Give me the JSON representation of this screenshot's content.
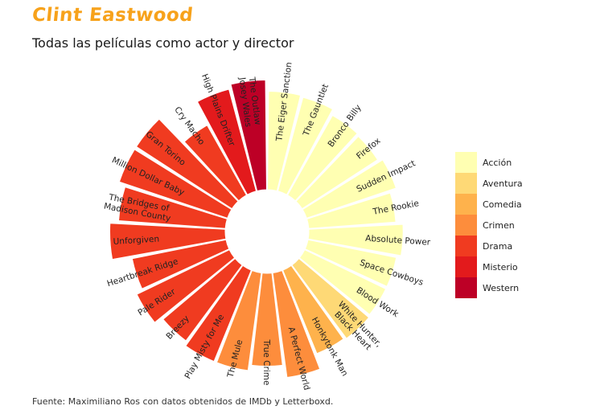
{
  "header": {
    "brand": "Clint Eastwood",
    "subtitle": "Todas las películas como actor y director"
  },
  "footer": {
    "source": "Fuente: Maximiliano Ros con datos obtenidos de IMDb y Letterboxd."
  },
  "genre_colors": {
    "Acción": "#ffffb2",
    "Aventura": "#fed976",
    "Comedia": "#feb24c",
    "Crimen": "#fd8d3c",
    "Drama": "#f03b20",
    "Misterio": "#e31a1c",
    "Western": "#bd0026"
  },
  "chart_data": {
    "type": "bar",
    "coordinate_system": "polar",
    "categories": [
      "The Eiger Sanction",
      "The Gauntlet",
      "Bronco Billy",
      "Firefox",
      "Sudden Impact",
      "The Rookie",
      "Absolute Power",
      "Space Cowboys",
      "Blood Work",
      "White Hunter, Black Heart",
      "Honkytonk Man",
      "A Perfect World",
      "True Crime",
      "The Mule",
      "Play Misty for Me",
      "Breezy",
      "Pale Rider",
      "Heartbreak Ridge",
      "Unforgiven",
      "The Bridges of Madison County",
      "Million Dollar Baby",
      "Gran Torino",
      "Cry Macho",
      "High Plains Drifter",
      "The Outlaw Josey Wales"
    ],
    "tick_labels": [
      [
        "The Eiger Sanction"
      ],
      [
        "The Gauntlet"
      ],
      [
        "Bronco Billy"
      ],
      [
        "Firefox"
      ],
      [
        "Sudden Impact"
      ],
      [
        "The Rookie"
      ],
      [
        "Absolute Power"
      ],
      [
        "Space Cowboys"
      ],
      [
        "Blood Work"
      ],
      [
        "White Hunter,",
        "Black Heart"
      ],
      [
        "Honkytonk Man"
      ],
      [
        "A Perfect World"
      ],
      [
        "True Crime"
      ],
      [
        "The Mule"
      ],
      [
        "Play Misty for Me"
      ],
      [
        "Breezy"
      ],
      [
        "Pale Rider"
      ],
      [
        "Heartbreak Ridge"
      ],
      [
        "Unforgiven"
      ],
      [
        "The Bridges of",
        "Madison County"
      ],
      [
        "Million Dollar Baby"
      ],
      [
        "Gran Torino"
      ],
      [
        "Cry Macho"
      ],
      [
        "High Plains Drifter"
      ],
      [
        "The Outlaw",
        "Josey Wales"
      ]
    ],
    "genres": [
      "Acción",
      "Acción",
      "Acción",
      "Acción",
      "Acción",
      "Acción",
      "Acción",
      "Acción",
      "Acción",
      "Aventura",
      "Comedia",
      "Crimen",
      "Crimen",
      "Crimen",
      "Drama",
      "Drama",
      "Drama",
      "Drama",
      "Drama",
      "Drama",
      "Drama",
      "Drama",
      "Drama",
      "Misterio",
      "Western"
    ],
    "values": [
      7.0,
      6.9,
      6.5,
      6.4,
      6.7,
      6.2,
      6.7,
      6.4,
      6.4,
      6.5,
      6.4,
      7.5,
      6.6,
      7.0,
      7.0,
      6.7,
      7.3,
      6.8,
      8.2,
      7.6,
      8.1,
      8.1,
      5.7,
      7.5,
      7.8
    ],
    "ylim": [
      0,
      8.5
    ],
    "legend": {
      "title": "",
      "entries": [
        "Acción",
        "Aventura",
        "Comedia",
        "Crimen",
        "Drama",
        "Misterio",
        "Western"
      ],
      "placement": "right"
    },
    "title": "",
    "xlabel": "",
    "ylabel": "",
    "grid": false
  }
}
